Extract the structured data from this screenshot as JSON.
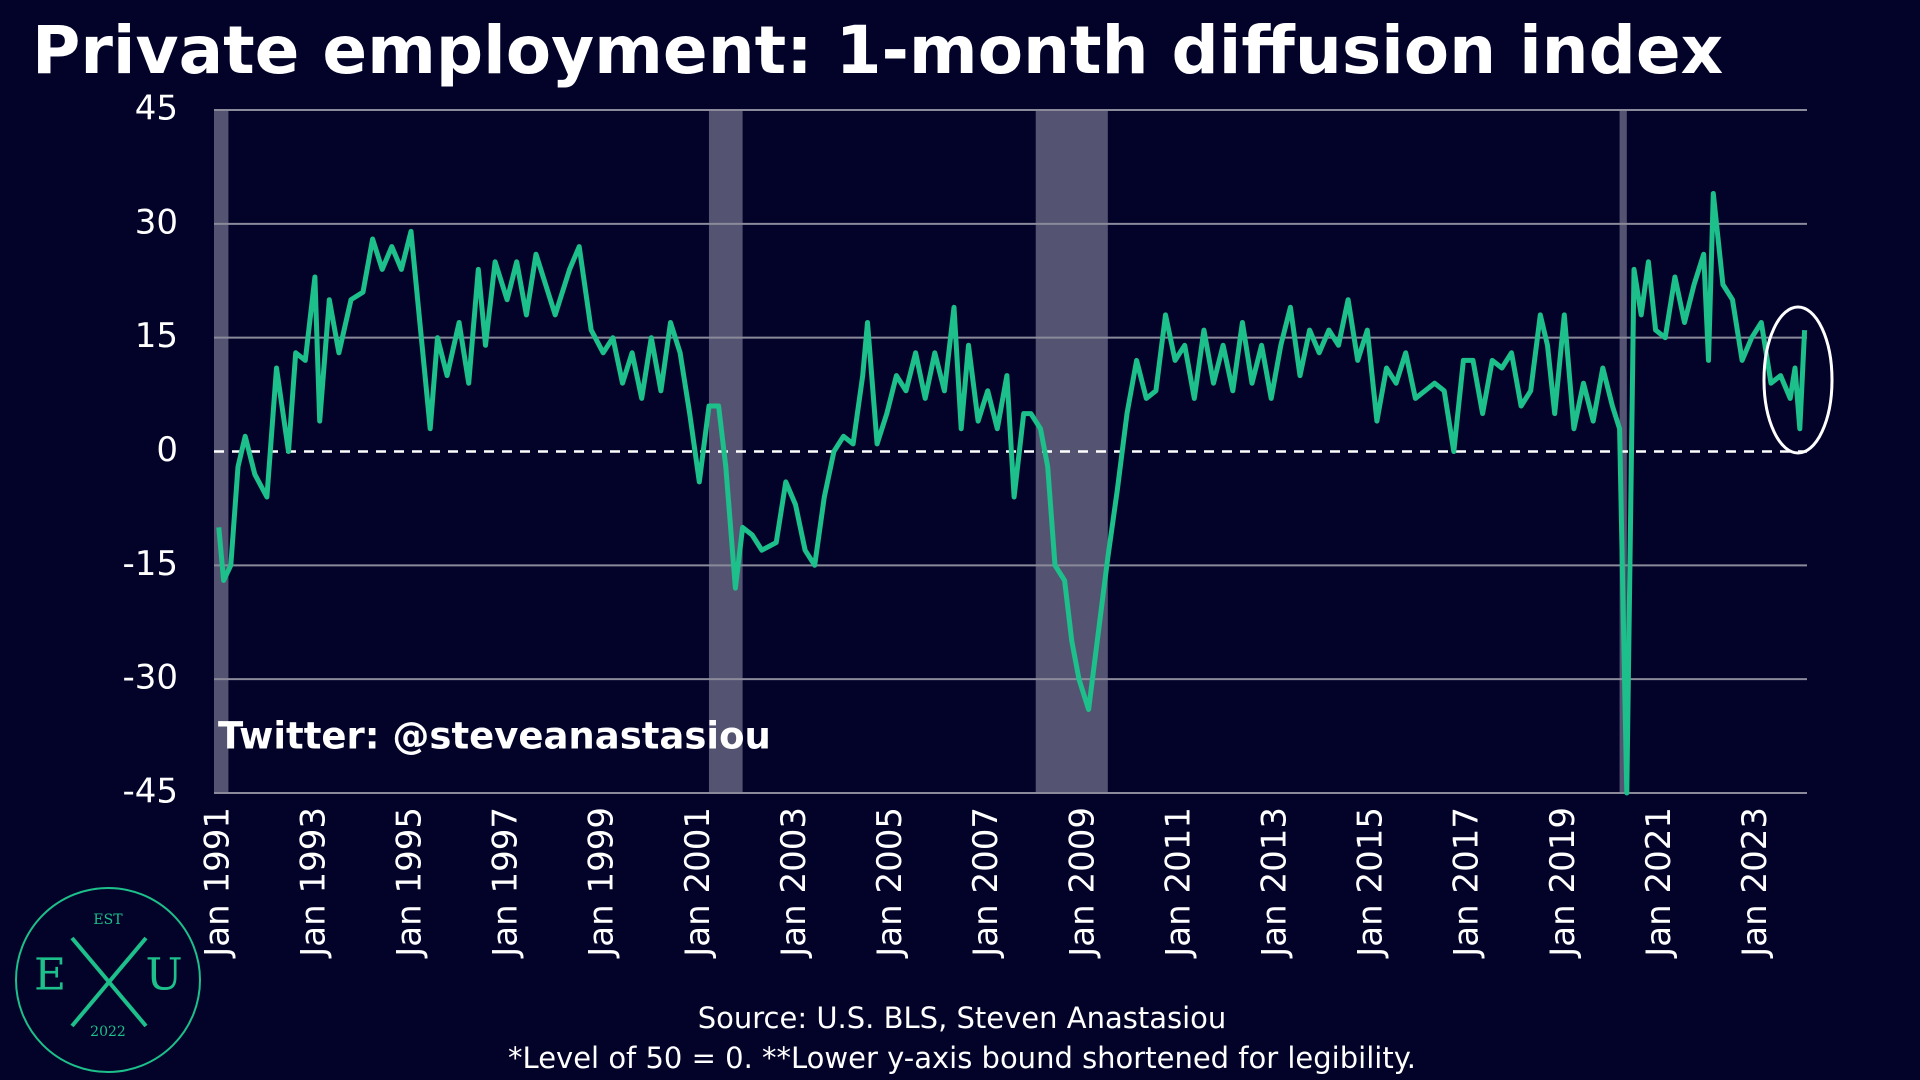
{
  "chart_data": {
    "type": "line",
    "title": "Private employment: 1-month diffusion index",
    "annotation": "Twitter: @steveanastasiou",
    "source": "Source: U.S. BLS, Steven Anastasiou",
    "footnote": "*Level of 50 = 0. **Lower y-axis bound shortened for legibility.",
    "logo": {
      "top": "EST",
      "left": "E",
      "right": "U",
      "bottom": "2022"
    },
    "color": "#1dbf8a",
    "shade_color": "#5d5d7a",
    "grid": true,
    "xlim": [
      1990.9,
      2024.05
    ],
    "ylim": [
      -45,
      45
    ],
    "yticks": [
      -45,
      -30,
      -15,
      0,
      15,
      30,
      45
    ],
    "xticks": [
      {
        "value": 1991,
        "label": "Jan 1991"
      },
      {
        "value": 1993,
        "label": "Jan 1993"
      },
      {
        "value": 1995,
        "label": "Jan 1995"
      },
      {
        "value": 1997,
        "label": "Jan 1997"
      },
      {
        "value": 1999,
        "label": "Jan 1999"
      },
      {
        "value": 2001,
        "label": "Jan 2001"
      },
      {
        "value": 2003,
        "label": "Jan 2003"
      },
      {
        "value": 2005,
        "label": "Jan 2005"
      },
      {
        "value": 2007,
        "label": "Jan 2007"
      },
      {
        "value": 2009,
        "label": "Jan 2009"
      },
      {
        "value": 2011,
        "label": "Jan 2011"
      },
      {
        "value": 2013,
        "label": "Jan 2013"
      },
      {
        "value": 2015,
        "label": "Jan 2015"
      },
      {
        "value": 2017,
        "label": "Jan 2017"
      },
      {
        "value": 2019,
        "label": "Jan 2019"
      },
      {
        "value": 2021,
        "label": "Jan 2021"
      },
      {
        "value": 2023,
        "label": "Jan 2023"
      }
    ],
    "recessions": [
      [
        1990.9,
        1991.2
      ],
      [
        2001.2,
        2001.9
      ],
      [
        2008.0,
        2009.5
      ],
      [
        2020.15,
        2020.3
      ]
    ],
    "x": [
      1991.0,
      1991.1,
      1991.25,
      1991.4,
      1991.55,
      1991.75,
      1992.0,
      1992.2,
      1992.45,
      1992.6,
      1992.8,
      1993.0,
      1993.1,
      1993.3,
      1993.5,
      1993.75,
      1994.0,
      1994.2,
      1994.4,
      1994.6,
      1994.8,
      1995.0,
      1995.2,
      1995.4,
      1995.55,
      1995.75,
      1996.0,
      1996.2,
      1996.4,
      1996.55,
      1996.75,
      1997.0,
      1997.2,
      1997.4,
      1997.6,
      1997.8,
      1998.0,
      1998.3,
      1998.5,
      1998.75,
      1999.0,
      1999.2,
      1999.4,
      1999.6,
      1999.8,
      2000.0,
      2000.2,
      2000.4,
      2000.6,
      2000.8,
      2001.0,
      2001.2,
      2001.4,
      2001.55,
      2001.75,
      2001.9,
      2002.1,
      2002.3,
      2002.6,
      2002.8,
      2003.0,
      2003.2,
      2003.4,
      2003.6,
      2003.8,
      2004.0,
      2004.2,
      2004.4,
      2004.5,
      2004.7,
      2004.9,
      2005.1,
      2005.3,
      2005.5,
      2005.7,
      2005.9,
      2006.1,
      2006.3,
      2006.45,
      2006.6,
      2006.8,
      2007.0,
      2007.2,
      2007.4,
      2007.55,
      2007.75,
      2007.9,
      2008.1,
      2008.25,
      2008.4,
      2008.6,
      2008.75,
      2008.9,
      2009.1,
      2009.3,
      2009.5,
      2009.7,
      2009.9,
      2010.1,
      2010.3,
      2010.5,
      2010.7,
      2010.9,
      2011.1,
      2011.3,
      2011.5,
      2011.7,
      2011.9,
      2012.1,
      2012.3,
      2012.5,
      2012.7,
      2012.9,
      2013.1,
      2013.3,
      2013.5,
      2013.7,
      2013.9,
      2014.1,
      2014.3,
      2014.5,
      2014.7,
      2014.9,
      2015.1,
      2015.3,
      2015.5,
      2015.7,
      2015.9,
      2016.1,
      2016.3,
      2016.5,
      2016.7,
      2016.9,
      2017.1,
      2017.3,
      2017.5,
      2017.7,
      2017.9,
      2018.1,
      2018.3,
      2018.5,
      2018.65,
      2018.8,
      2019.0,
      2019.2,
      2019.4,
      2019.6,
      2019.8,
      2020.0,
      2020.15,
      2020.3,
      2020.45,
      2020.6,
      2020.75,
      2020.9,
      2021.1,
      2021.3,
      2021.5,
      2021.7,
      2021.9,
      2022.0,
      2022.1,
      2022.3,
      2022.5,
      2022.7,
      2022.9,
      2023.1,
      2023.3,
      2023.5,
      2023.7,
      2023.8,
      2023.9,
      2024.0
    ],
    "values": [
      -10,
      -17,
      -15,
      -2,
      2,
      -3,
      -6,
      11,
      0,
      13,
      12,
      23,
      4,
      20,
      13,
      20,
      21,
      28,
      24,
      27,
      24,
      29,
      16,
      3,
      15,
      10,
      17,
      9,
      24,
      14,
      25,
      20,
      25,
      18,
      26,
      22,
      18,
      24,
      27,
      16,
      13,
      15,
      9,
      13,
      7,
      15,
      8,
      17,
      13,
      5,
      -4,
      6,
      6,
      -2,
      -18,
      -10,
      -11,
      -13,
      -12,
      -4,
      -7,
      -13,
      -15,
      -6,
      0,
      2,
      1,
      10,
      17,
      1,
      5,
      10,
      8,
      13,
      7,
      13,
      8,
      19,
      3,
      14,
      4,
      8,
      3,
      10,
      -6,
      5,
      5,
      3,
      -2,
      -15,
      -17,
      -25,
      -30,
      -34,
      -24,
      -14,
      -5,
      5,
      12,
      7,
      8,
      18,
      12,
      14,
      7,
      16,
      9,
      14,
      8,
      17,
      9,
      14,
      7,
      14,
      19,
      10,
      16,
      13,
      16,
      14,
      20,
      12,
      16,
      4,
      11,
      9,
      13,
      7,
      8,
      9,
      8,
      0,
      12,
      12,
      5,
      12,
      11,
      13,
      6,
      8,
      18,
      14,
      5,
      18,
      3,
      9,
      4,
      11,
      6,
      3,
      -45,
      24,
      18,
      25,
      16,
      15,
      23,
      17,
      22,
      26,
      12,
      34,
      22,
      20,
      12,
      15,
      17,
      9,
      10,
      7,
      11,
      3,
      16
    ]
  }
}
